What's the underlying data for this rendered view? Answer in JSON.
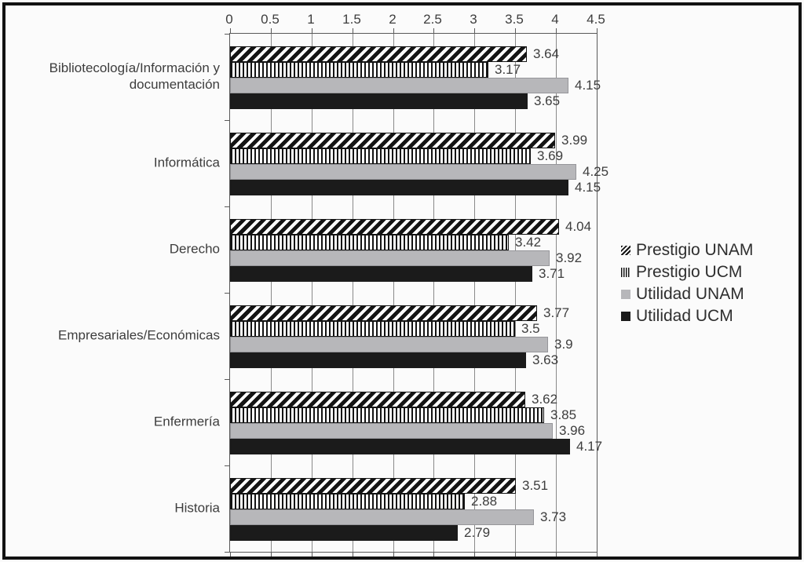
{
  "chart_data": {
    "type": "bar",
    "orientation": "horizontal",
    "title": "",
    "xlabel": "",
    "ylabel": "",
    "xlim": [
      0,
      4.5
    ],
    "grid": true,
    "axis_position": "top",
    "legend_position": "right",
    "x_ticks": [
      0,
      0.5,
      1,
      1.5,
      2,
      2.5,
      3,
      3.5,
      4,
      4.5
    ],
    "x_tick_labels": [
      "0",
      "0.5",
      "1",
      "1.5",
      "2",
      "2.5",
      "3",
      "3.5",
      "4",
      "4.5"
    ],
    "categories": [
      "Bibliotecología/Información y documentación",
      "Informática",
      "Derecho",
      "Empresariales/Económicas",
      "Enfermería",
      "Historia"
    ],
    "series": [
      {
        "name": "Prestigio UNAM",
        "pattern": "diagonal-hatch",
        "values": [
          3.64,
          3.99,
          4.04,
          3.77,
          3.62,
          3.51
        ],
        "labels": [
          "3.64",
          "3.99",
          "4.04",
          "3.77",
          "3.62",
          "3.51"
        ]
      },
      {
        "name": "Prestigio UCM",
        "pattern": "vertical-stripes",
        "values": [
          3.17,
          3.69,
          3.42,
          3.5,
          3.85,
          2.88
        ],
        "labels": [
          "3.17",
          "3.69",
          "3.42",
          "3.5",
          "3.85",
          "2.88"
        ]
      },
      {
        "name": "Utilidad UNAM",
        "pattern": "solid-gray",
        "values": [
          4.15,
          4.25,
          3.92,
          3.9,
          3.96,
          3.73
        ],
        "labels": [
          "4.15",
          "4.25",
          "3.92",
          "3.9",
          "3.96",
          "3.73"
        ]
      },
      {
        "name": "Utilidad UCM",
        "pattern": "solid-black",
        "values": [
          3.65,
          4.15,
          3.71,
          3.63,
          4.17,
          2.79
        ],
        "labels": [
          "3.65",
          "4.15",
          "3.71",
          "3.63",
          "4.17",
          "2.79"
        ]
      }
    ],
    "colors": {
      "gray_bar": "#b7b7ba",
      "black_bar": "#1b1b1b",
      "gridline": "#8a8a8a",
      "axis": "#595959",
      "text": "#3d3d3d",
      "frame": "#121212"
    }
  }
}
